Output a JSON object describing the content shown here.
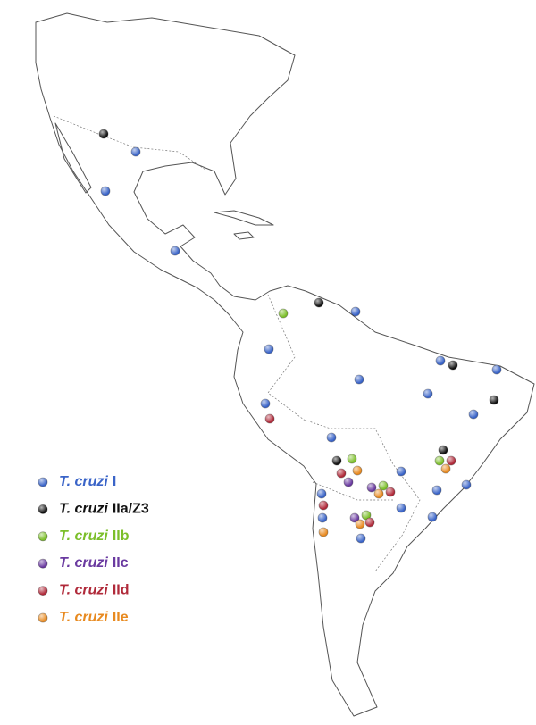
{
  "legend": {
    "items": [
      {
        "species": "T. cruzi",
        "group": "I",
        "color": "#3a64c8"
      },
      {
        "species": "T. cruzi",
        "group": "IIa/Z3",
        "color": "#111111"
      },
      {
        "species": "T. cruzi",
        "group": "IIb",
        "color": "#7cbf2a"
      },
      {
        "species": "T. cruzi",
        "group": "IIc",
        "color": "#6a3aa0"
      },
      {
        "species": "T. cruzi",
        "group": "IId",
        "color": "#b02a3a"
      },
      {
        "species": "T. cruzi",
        "group": "IIe",
        "color": "#e88a20"
      }
    ]
  }
}
